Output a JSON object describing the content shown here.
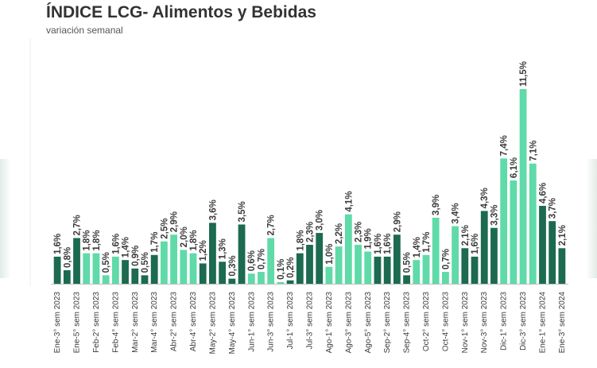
{
  "title": "ÍNDICE LCG- Alimentos y Bebidas",
  "subtitle": "variación semanal",
  "colors": {
    "dark": "#1c6a4f",
    "light": "#5fdaa8"
  },
  "chart_data": {
    "type": "bar",
    "title": "ÍNDICE LCG- Alimentos y Bebidas",
    "subtitle": "variación semanal",
    "xlabel": "",
    "ylabel": "",
    "ylim": [
      0,
      12
    ],
    "grid": false,
    "legend": "none",
    "tick_labels": [
      "Ene-3° sem 2023",
      "Ene-5° sem 2023",
      "Feb-2° sem 2023",
      "Feb-4° sem 2023",
      "Mar-2° sem 2023",
      "Mar-4° sem 2023",
      "Abr-2° sem 2023",
      "Abr-4° sem 2023",
      "May-2° sem 2023",
      "May-4° sem 2023",
      "Jun-1° sem 2023",
      "Jun-3° sem 2023",
      "Jul-1° sem 2023",
      "Jul-3° sem 2023",
      "Ago-1° sem 2023",
      "Ago-3° sem 2023",
      "Ago-5° sem 2023",
      "Sep-2° sem 2023",
      "Sep-4° sem 2023",
      "Oct-2° sem 2023",
      "Oct-4° sem 2023",
      "Nov-1° sem 2023",
      "Nov-3° sem 2023",
      "Dic-1° sem 2023",
      "Dic-3° sem 2023",
      "Ene-1° sem 2024",
      "Ene-3° sem 2024"
    ],
    "values": [
      1.6,
      0.8,
      2.7,
      1.8,
      1.8,
      0.5,
      1.6,
      1.4,
      0.9,
      0.5,
      1.7,
      2.5,
      2.9,
      2.0,
      1.8,
      1.2,
      3.6,
      1.3,
      0.3,
      3.5,
      0.6,
      0.7,
      2.7,
      0.1,
      0.2,
      1.8,
      2.3,
      3.0,
      1.0,
      2.2,
      4.1,
      2.3,
      1.9,
      1.6,
      1.6,
      2.9,
      0.5,
      1.4,
      1.7,
      3.9,
      0.7,
      3.4,
      2.1,
      1.6,
      4.3,
      3.3,
      7.4,
      6.1,
      11.5,
      7.1,
      4.6,
      3.7,
      2.1
    ],
    "value_labels": [
      "1,6%",
      "0,8%",
      "2,7%",
      "1,8%",
      "1,8%",
      "0,5%",
      "1,6%",
      "1,4%",
      "0,9%",
      "0,5%",
      "1,7%",
      "2,5%",
      "2,9%",
      "2,0%",
      "1,8%",
      "1,2%",
      "3,6%",
      "1,3%",
      "0,3%",
      "3,5%",
      "0,6%",
      "0,7%",
      "2,7%",
      "0,1%",
      "0,2%",
      "1,8%",
      "2,3%",
      "3,0%",
      "1,0%",
      "2,2%",
      "4,1%",
      "2,3%",
      "1,9%",
      "1,6%",
      "1,6%",
      "2,9%",
      "0,5%",
      "1,4%",
      "1,7%",
      "3,9%",
      "0,7%",
      "3,4%",
      "2,1%",
      "1,6%",
      "4,3%",
      "3,3%",
      "7,4%",
      "6,1%",
      "11,5%",
      "7,1%",
      "4,6%",
      "3,7%",
      "2,1%"
    ],
    "bar_colors": [
      "dark",
      "dark",
      "dark",
      "light",
      "light",
      "light",
      "light",
      "dark",
      "dark",
      "dark",
      "dark",
      "light",
      "light",
      "light",
      "light",
      "dark",
      "dark",
      "dark",
      "dark",
      "dark",
      "light",
      "light",
      "light",
      "light",
      "dark",
      "dark",
      "dark",
      "dark",
      "light",
      "light",
      "light",
      "light",
      "light",
      "dark",
      "dark",
      "dark",
      "dark",
      "light",
      "light",
      "light",
      "light",
      "light",
      "dark",
      "dark",
      "dark",
      "dark",
      "light",
      "light",
      "light",
      "light",
      "dark",
      "dark",
      "dark"
    ]
  }
}
